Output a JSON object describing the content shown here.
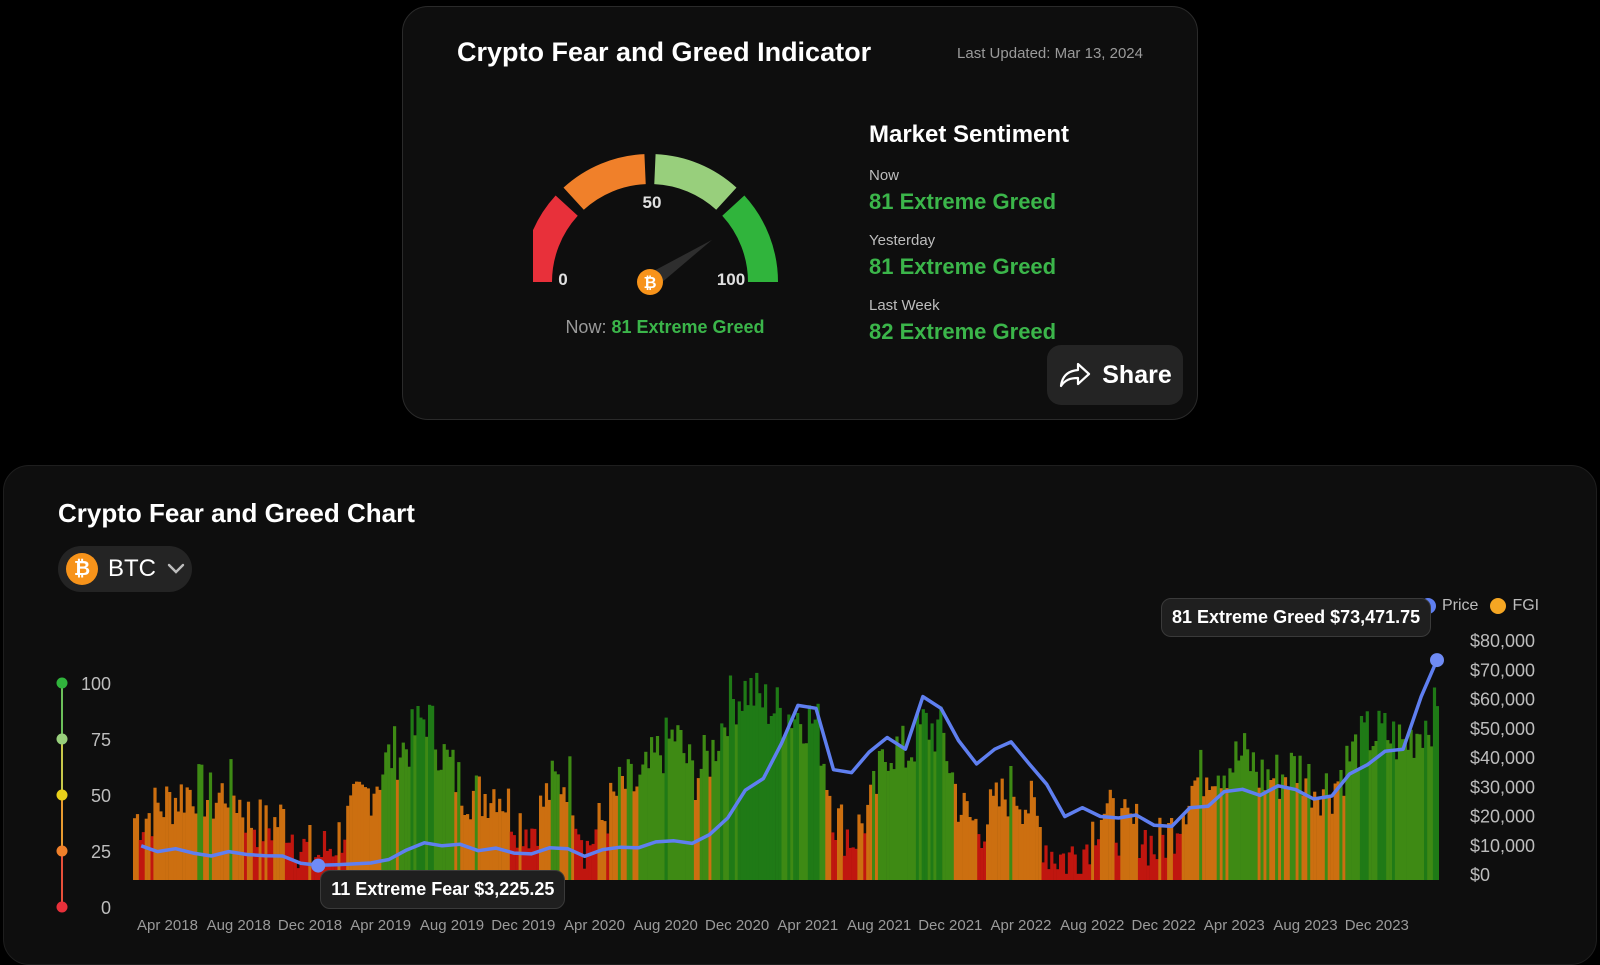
{
  "indicator": {
    "title": "Crypto Fear and Greed Indicator",
    "last_updated": "Last Updated: Mar 13, 2024",
    "gauge": {
      "value": 81,
      "label_min": "0",
      "label_mid": "50",
      "label_max": "100",
      "now_prefix": "Now:",
      "now_value": "81 Extreme Greed",
      "segment_colors": [
        "#e8303a",
        "#f0802a",
        "#98cf7c",
        "#30b43c"
      ]
    },
    "market_sentiment": {
      "title": "Market Sentiment",
      "rows": [
        {
          "label": "Now",
          "value": "81 Extreme Greed"
        },
        {
          "label": "Yesterday",
          "value": "81 Extreme Greed"
        },
        {
          "label": "Last Week",
          "value": "82 Extreme Greed"
        }
      ]
    },
    "share_label": "Share"
  },
  "chart_section": {
    "title": "Crypto Fear and Greed Chart",
    "asset_symbol": "BTC",
    "legend": [
      {
        "label": "Price",
        "color": "#5f7ff0"
      },
      {
        "label": "FGI",
        "color": "#f5a623"
      }
    ]
  },
  "chart_data": {
    "type": "bar",
    "fgi_axis": {
      "ticks": [
        100,
        75,
        50,
        25,
        0
      ],
      "range": [
        0,
        100
      ]
    },
    "price_axis": {
      "ticks": [
        "$80,000",
        "$70,000",
        "$60,000",
        "$50,000",
        "$40,000",
        "$30,000",
        "$20,000",
        "$10,000",
        "$0"
      ],
      "range": [
        0,
        80000
      ]
    },
    "x_ticks": [
      "Apr 2018",
      "Aug 2018",
      "Dec 2018",
      "Apr 2019",
      "Aug 2019",
      "Dec 2019",
      "Apr 2020",
      "Aug 2020",
      "Dec 2020",
      "Apr 2021",
      "Aug 2021",
      "Dec 2021",
      "Apr 2022",
      "Aug 2022",
      "Dec 2022",
      "Apr 2023",
      "Aug 2023",
      "Dec 2023"
    ],
    "x_range": [
      "2018-02-01",
      "2024-03-13"
    ],
    "fgi_color_bands": [
      {
        "max": 25,
        "color": "#c0160f"
      },
      {
        "max": 50,
        "color": "#cc6f10"
      },
      {
        "max": 75,
        "color": "#3e8a14"
      },
      {
        "max": 100,
        "color": "#1f7a16"
      }
    ],
    "price_series_color": "#5f7ff0",
    "fgi_series": {
      "name": "FGI",
      "dates": [
        "2018-02",
        "2018-03",
        "2018-04",
        "2018-05",
        "2018-06",
        "2018-07",
        "2018-08",
        "2018-09",
        "2018-10",
        "2018-11",
        "2018-12",
        "2019-01",
        "2019-02",
        "2019-03",
        "2019-04",
        "2019-05",
        "2019-06",
        "2019-07",
        "2019-08",
        "2019-09",
        "2019-10",
        "2019-11",
        "2019-12",
        "2020-01",
        "2020-02",
        "2020-03",
        "2020-04",
        "2020-05",
        "2020-06",
        "2020-07",
        "2020-08",
        "2020-09",
        "2020-10",
        "2020-11",
        "2020-12",
        "2021-01",
        "2021-02",
        "2021-03",
        "2021-04",
        "2021-05",
        "2021-06",
        "2021-07",
        "2021-08",
        "2021-09",
        "2021-10",
        "2021-11",
        "2021-12",
        "2022-01",
        "2022-02",
        "2022-03",
        "2022-04",
        "2022-05",
        "2022-06",
        "2022-07",
        "2022-08",
        "2022-09",
        "2022-10",
        "2022-11",
        "2022-12",
        "2023-01",
        "2023-02",
        "2023-03",
        "2023-04",
        "2023-05",
        "2023-06",
        "2023-07",
        "2023-08",
        "2023-09",
        "2023-10",
        "2023-11",
        "2023-12",
        "2024-01",
        "2024-02",
        "2024-03"
      ],
      "values": [
        30,
        35,
        40,
        45,
        38,
        45,
        30,
        25,
        30,
        15,
        12,
        20,
        35,
        45,
        60,
        65,
        80,
        60,
        45,
        40,
        45,
        30,
        25,
        45,
        50,
        15,
        30,
        45,
        45,
        60,
        70,
        50,
        60,
        85,
        92,
        85,
        80,
        80,
        75,
        30,
        20,
        35,
        65,
        60,
        75,
        70,
        35,
        25,
        35,
        45,
        35,
        15,
        10,
        15,
        35,
        25,
        25,
        15,
        25,
        45,
        55,
        55,
        60,
        50,
        50,
        55,
        45,
        45,
        60,
        70,
        70,
        65,
        75,
        81
      ]
    },
    "price_series": {
      "name": "Price",
      "dates": [
        "2018-02",
        "2018-03",
        "2018-04",
        "2018-05",
        "2018-06",
        "2018-07",
        "2018-08",
        "2018-09",
        "2018-10",
        "2018-11",
        "2018-12",
        "2019-01",
        "2019-02",
        "2019-03",
        "2019-04",
        "2019-05",
        "2019-06",
        "2019-07",
        "2019-08",
        "2019-09",
        "2019-10",
        "2019-11",
        "2019-12",
        "2020-01",
        "2020-02",
        "2020-03",
        "2020-04",
        "2020-05",
        "2020-06",
        "2020-07",
        "2020-08",
        "2020-09",
        "2020-10",
        "2020-11",
        "2020-12",
        "2021-01",
        "2021-02",
        "2021-03",
        "2021-04",
        "2021-05",
        "2021-06",
        "2021-07",
        "2021-08",
        "2021-09",
        "2021-10",
        "2021-11",
        "2021-12",
        "2022-01",
        "2022-02",
        "2022-03",
        "2022-04",
        "2022-05",
        "2022-06",
        "2022-07",
        "2022-08",
        "2022-09",
        "2022-10",
        "2022-11",
        "2022-12",
        "2023-01",
        "2023-02",
        "2023-03",
        "2023-04",
        "2023-05",
        "2023-06",
        "2023-07",
        "2023-08",
        "2023-09",
        "2023-10",
        "2023-11",
        "2023-12",
        "2024-01",
        "2024-02",
        "2024-03"
      ],
      "values": [
        10000,
        8000,
        9000,
        7500,
        6500,
        8000,
        7000,
        6600,
        6500,
        4000,
        3300,
        3500,
        3800,
        4100,
        5300,
        8500,
        11000,
        10000,
        10500,
        8300,
        9200,
        7500,
        7200,
        9300,
        9000,
        6400,
        8700,
        9500,
        9300,
        11300,
        11700,
        10800,
        13800,
        19500,
        29000,
        33000,
        45000,
        58000,
        57000,
        36000,
        35000,
        42000,
        47000,
        43000,
        61000,
        57000,
        46000,
        38000,
        43000,
        45500,
        38000,
        31000,
        20000,
        23000,
        20000,
        19500,
        20500,
        17000,
        16600,
        23000,
        23500,
        28500,
        29300,
        27200,
        30500,
        29200,
        26000,
        27000,
        34500,
        37700,
        42300,
        43000,
        61000,
        73471.75
      ]
    },
    "annotations": [
      {
        "text": "11 Extreme Fear $3,225.25",
        "date": "2018-12-15",
        "price": 3225.25
      },
      {
        "text": "81 Extreme Greed $73,471.75",
        "date": "2024-03-13",
        "price": 73471.75
      }
    ]
  }
}
